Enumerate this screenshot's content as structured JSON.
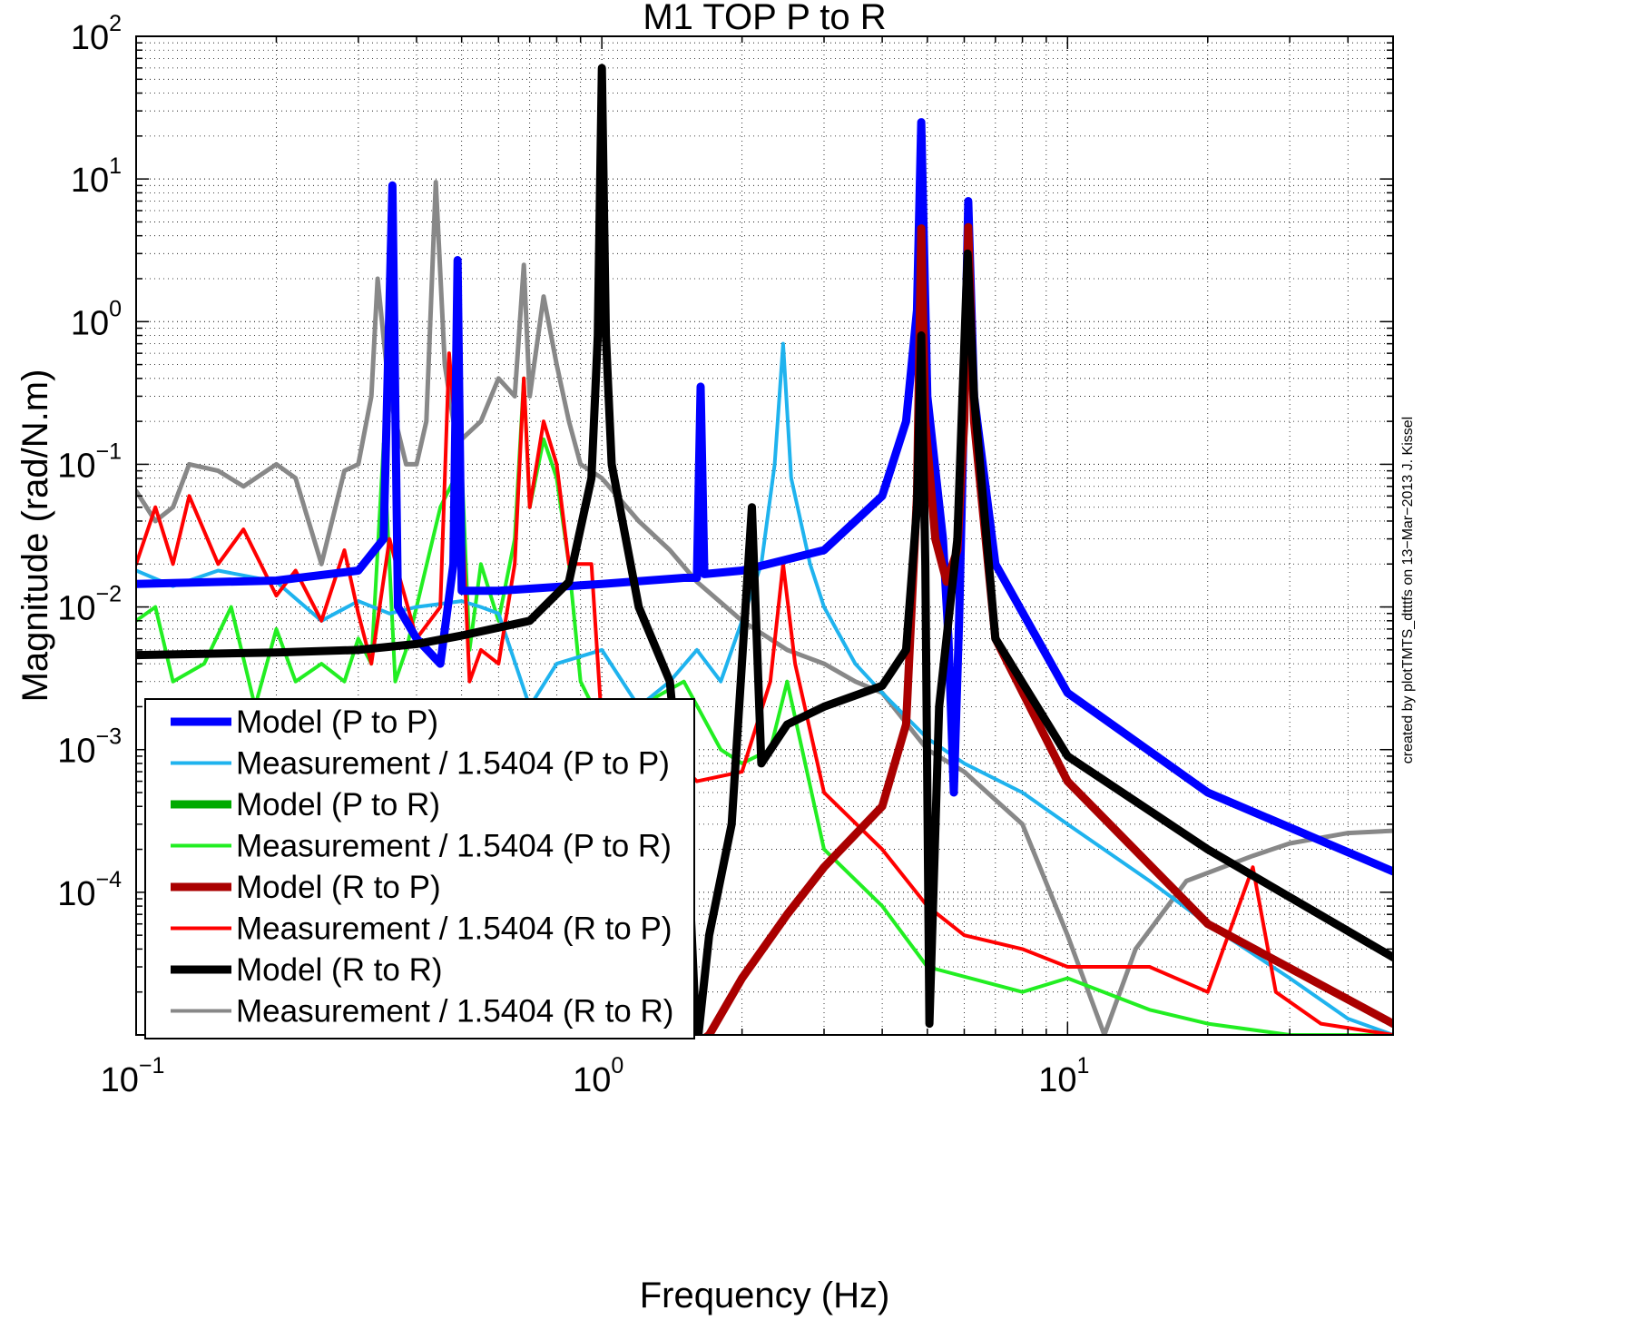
{
  "chart_data": {
    "type": "line",
    "title": "M1 TOP P to R",
    "xlabel": "Frequency (Hz)",
    "ylabel": "Magnitude (rad/N.m)",
    "x_scale": "log",
    "y_scale": "log",
    "xlim": [
      0.1,
      50
    ],
    "ylim": [
      1e-05,
      100
    ],
    "x_ticks": [
      {
        "value": 0.1,
        "base": "10",
        "exp": "−1"
      },
      {
        "value": 1,
        "base": "10",
        "exp": "0"
      },
      {
        "value": 10,
        "base": "10",
        "exp": "1"
      }
    ],
    "y_ticks": [
      {
        "value": 100,
        "base": "10",
        "exp": "2"
      },
      {
        "value": 10,
        "base": "10",
        "exp": "1"
      },
      {
        "value": 1,
        "base": "10",
        "exp": "0"
      },
      {
        "value": 0.1,
        "base": "10",
        "exp": "−1"
      },
      {
        "value": 0.01,
        "base": "10",
        "exp": "−2"
      },
      {
        "value": 0.001,
        "base": "10",
        "exp": "−3"
      },
      {
        "value": 0.0001,
        "base": "10",
        "exp": "−4"
      }
    ],
    "grid": true,
    "legend_position": "bottom-left",
    "credit": "created by plotTMTS_dtttfs on 13−Mar−2013 J. Kissel",
    "series": [
      {
        "name": "Model (P to P)",
        "color": "#0000ff",
        "width": 9,
        "kind": "model",
        "points": [
          [
            0.1,
            0.0145
          ],
          [
            0.2,
            0.0153
          ],
          [
            0.3,
            0.018
          ],
          [
            0.34,
            0.03
          ],
          [
            0.355,
            9
          ],
          [
            0.365,
            0.01
          ],
          [
            0.4,
            0.006
          ],
          [
            0.45,
            0.004
          ],
          [
            0.48,
            0.02
          ],
          [
            0.49,
            2.7
          ],
          [
            0.5,
            0.013
          ],
          [
            0.6,
            0.013
          ],
          [
            1,
            0.0145
          ],
          [
            1.5,
            0.016
          ],
          [
            1.6,
            0.016
          ],
          [
            1.63,
            0.35
          ],
          [
            1.66,
            0.017
          ],
          [
            2,
            0.018
          ],
          [
            3,
            0.025
          ],
          [
            4,
            0.06
          ],
          [
            4.5,
            0.2
          ],
          [
            4.75,
            1.2
          ],
          [
            4.85,
            25
          ],
          [
            5,
            0.3
          ],
          [
            5.4,
            0.03
          ],
          [
            5.55,
            0.006
          ],
          [
            5.7,
            0.0005
          ],
          [
            5.85,
            0.008
          ],
          [
            6,
            0.3
          ],
          [
            6.12,
            7
          ],
          [
            6.3,
            0.3
          ],
          [
            7,
            0.02
          ],
          [
            10,
            0.0025
          ],
          [
            20,
            0.0005
          ],
          [
            50,
            0.00014
          ]
        ]
      },
      {
        "name": "Measurement / 1.5404 (P to P)",
        "color": "#1fb3ee",
        "width": 4,
        "kind": "measurement",
        "points": [
          [
            0.1,
            0.018
          ],
          [
            0.12,
            0.014
          ],
          [
            0.15,
            0.018
          ],
          [
            0.2,
            0.015
          ],
          [
            0.25,
            0.008
          ],
          [
            0.3,
            0.011
          ],
          [
            0.35,
            0.009
          ],
          [
            0.4,
            0.01
          ],
          [
            0.5,
            0.011
          ],
          [
            0.55,
            0.01
          ],
          [
            0.6,
            0.009
          ],
          [
            0.7,
            0.002
          ],
          [
            0.8,
            0.004
          ],
          [
            1,
            0.005
          ],
          [
            1.2,
            0.002
          ],
          [
            1.4,
            0.003
          ],
          [
            1.6,
            0.005
          ],
          [
            1.8,
            0.003
          ],
          [
            2,
            0.008
          ],
          [
            2.2,
            0.02
          ],
          [
            2.35,
            0.1
          ],
          [
            2.45,
            0.7
          ],
          [
            2.55,
            0.08
          ],
          [
            2.8,
            0.02
          ],
          [
            3,
            0.01
          ],
          [
            3.5,
            0.004
          ],
          [
            4,
            0.0025
          ],
          [
            5,
            0.0012
          ],
          [
            6,
            0.0008
          ],
          [
            8,
            0.0005
          ],
          [
            10,
            0.0003
          ],
          [
            15,
            0.00012
          ],
          [
            20,
            6e-05
          ],
          [
            30,
            2.5e-05
          ],
          [
            40,
            1.3e-05
          ],
          [
            50,
            1e-05
          ]
        ]
      },
      {
        "name": "Model (P to R)",
        "color": "#00aa00",
        "width": 9,
        "kind": "model",
        "points": []
      },
      {
        "name": "Measurement / 1.5404 (P to R)",
        "color": "#22ee22",
        "width": 4,
        "kind": "measurement",
        "points": [
          [
            0.1,
            0.008
          ],
          [
            0.11,
            0.01
          ],
          [
            0.12,
            0.003
          ],
          [
            0.14,
            0.004
          ],
          [
            0.16,
            0.01
          ],
          [
            0.18,
            0.002
          ],
          [
            0.2,
            0.007
          ],
          [
            0.22,
            0.003
          ],
          [
            0.25,
            0.004
          ],
          [
            0.28,
            0.003
          ],
          [
            0.3,
            0.006
          ],
          [
            0.32,
            0.004
          ],
          [
            0.34,
            0.14
          ],
          [
            0.36,
            0.003
          ],
          [
            0.38,
            0.005
          ],
          [
            0.4,
            0.01
          ],
          [
            0.45,
            0.05
          ],
          [
            0.5,
            0.1
          ],
          [
            0.52,
            0.005
          ],
          [
            0.55,
            0.02
          ],
          [
            0.6,
            0.008
          ],
          [
            0.65,
            0.03
          ],
          [
            0.68,
            0.4
          ],
          [
            0.7,
            0.05
          ],
          [
            0.75,
            0.15
          ],
          [
            0.8,
            0.08
          ],
          [
            0.85,
            0.02
          ],
          [
            0.9,
            0.003
          ],
          [
            1,
            0.0015
          ],
          [
            1.2,
            0.002
          ],
          [
            1.5,
            0.003
          ],
          [
            1.8,
            0.001
          ],
          [
            2,
            0.0008
          ],
          [
            2.3,
            0.001
          ],
          [
            2.5,
            0.003
          ],
          [
            3,
            0.0002
          ],
          [
            4,
            8e-05
          ],
          [
            5,
            3e-05
          ],
          [
            8,
            2e-05
          ],
          [
            10,
            2.5e-05
          ],
          [
            15,
            1.5e-05
          ],
          [
            20,
            1.2e-05
          ],
          [
            30,
            1e-05
          ],
          [
            50,
            1e-05
          ]
        ]
      },
      {
        "name": "Model (R to P)",
        "color": "#aa0000",
        "width": 9,
        "kind": "model",
        "points": [
          [
            1.55,
            8e-06
          ],
          [
            1.7,
            1e-05
          ],
          [
            2,
            2.5e-05
          ],
          [
            2.5,
            7e-05
          ],
          [
            3,
            0.00015
          ],
          [
            4,
            0.0004
          ],
          [
            4.5,
            0.0015
          ],
          [
            4.75,
            0.06
          ],
          [
            4.85,
            4.5
          ],
          [
            4.95,
            0.2
          ],
          [
            5.2,
            0.03
          ],
          [
            5.5,
            0.015
          ],
          [
            5.8,
            0.025
          ],
          [
            6,
            0.2
          ],
          [
            6.12,
            4.6
          ],
          [
            6.3,
            0.2
          ],
          [
            7,
            0.006
          ],
          [
            10,
            0.0006
          ],
          [
            20,
            6e-05
          ],
          [
            50,
            1.2e-05
          ]
        ]
      },
      {
        "name": "Measurement / 1.5404 (R to P)",
        "color": "#ff0000",
        "width": 4,
        "kind": "measurement",
        "points": [
          [
            0.1,
            0.02
          ],
          [
            0.11,
            0.05
          ],
          [
            0.12,
            0.02
          ],
          [
            0.13,
            0.06
          ],
          [
            0.15,
            0.02
          ],
          [
            0.17,
            0.035
          ],
          [
            0.2,
            0.012
          ],
          [
            0.22,
            0.018
          ],
          [
            0.25,
            0.008
          ],
          [
            0.28,
            0.025
          ],
          [
            0.3,
            0.009
          ],
          [
            0.32,
            0.004
          ],
          [
            0.35,
            0.03
          ],
          [
            0.37,
            0.015
          ],
          [
            0.4,
            0.006
          ],
          [
            0.45,
            0.01
          ],
          [
            0.47,
            0.6
          ],
          [
            0.5,
            0.05
          ],
          [
            0.52,
            0.003
          ],
          [
            0.55,
            0.005
          ],
          [
            0.6,
            0.004
          ],
          [
            0.65,
            0.02
          ],
          [
            0.68,
            0.4
          ],
          [
            0.7,
            0.05
          ],
          [
            0.75,
            0.2
          ],
          [
            0.8,
            0.1
          ],
          [
            0.85,
            0.02
          ],
          [
            0.95,
            0.02
          ],
          [
            1,
            0.0015
          ],
          [
            1.1,
            0.002
          ],
          [
            1.3,
            0.0012
          ],
          [
            1.6,
            0.0006
          ],
          [
            2,
            0.0007
          ],
          [
            2.3,
            0.003
          ],
          [
            2.45,
            0.02
          ],
          [
            2.6,
            0.004
          ],
          [
            3,
            0.0005
          ],
          [
            4,
            0.0002
          ],
          [
            5,
            8e-05
          ],
          [
            6,
            5e-05
          ],
          [
            8,
            4e-05
          ],
          [
            10,
            3e-05
          ],
          [
            15,
            3e-05
          ],
          [
            20,
            2e-05
          ],
          [
            25,
            0.00015
          ],
          [
            28,
            2e-05
          ],
          [
            35,
            1.2e-05
          ],
          [
            50,
            1e-05
          ]
        ]
      },
      {
        "name": "Model (R to R)",
        "color": "#000000",
        "width": 9,
        "kind": "model",
        "points": [
          [
            0.1,
            0.0046
          ],
          [
            0.2,
            0.0048
          ],
          [
            0.3,
            0.005
          ],
          [
            0.4,
            0.0055
          ],
          [
            0.5,
            0.0063
          ],
          [
            0.7,
            0.008
          ],
          [
            0.85,
            0.015
          ],
          [
            0.95,
            0.08
          ],
          [
            0.98,
            0.8
          ],
          [
            1,
            60
          ],
          [
            1.02,
            0.8
          ],
          [
            1.05,
            0.1
          ],
          [
            1.2,
            0.01
          ],
          [
            1.4,
            0.003
          ],
          [
            1.55,
            8e-05
          ],
          [
            1.6,
            8e-06
          ],
          [
            1.7,
            5e-05
          ],
          [
            1.9,
            0.0003
          ],
          [
            2.1,
            0.05
          ],
          [
            2.2,
            0.0008
          ],
          [
            2.5,
            0.0015
          ],
          [
            3,
            0.002
          ],
          [
            4,
            0.0028
          ],
          [
            4.5,
            0.005
          ],
          [
            4.75,
            0.05
          ],
          [
            4.85,
            0.8
          ],
          [
            4.95,
            0.02
          ],
          [
            5.05,
            1.2e-05
          ],
          [
            5.3,
            0.002
          ],
          [
            5.8,
            0.03
          ],
          [
            6.1,
            3
          ],
          [
            6.3,
            0.3
          ],
          [
            7,
            0.006
          ],
          [
            10,
            0.0009
          ],
          [
            20,
            0.0002
          ],
          [
            50,
            3.5e-05
          ]
        ]
      },
      {
        "name": "Measurement / 1.5404 (R to R)",
        "color": "#888888",
        "width": 5,
        "kind": "measurement",
        "points": [
          [
            0.1,
            0.065
          ],
          [
            0.11,
            0.04
          ],
          [
            0.12,
            0.05
          ],
          [
            0.13,
            0.1
          ],
          [
            0.15,
            0.09
          ],
          [
            0.17,
            0.07
          ],
          [
            0.2,
            0.1
          ],
          [
            0.22,
            0.08
          ],
          [
            0.25,
            0.02
          ],
          [
            0.28,
            0.09
          ],
          [
            0.3,
            0.1
          ],
          [
            0.32,
            0.3
          ],
          [
            0.33,
            2
          ],
          [
            0.35,
            0.3
          ],
          [
            0.38,
            0.1
          ],
          [
            0.4,
            0.1
          ],
          [
            0.42,
            0.2
          ],
          [
            0.44,
            9.5
          ],
          [
            0.46,
            0.5
          ],
          [
            0.48,
            0.2
          ],
          [
            0.5,
            0.15
          ],
          [
            0.55,
            0.2
          ],
          [
            0.6,
            0.4
          ],
          [
            0.65,
            0.3
          ],
          [
            0.68,
            2.5
          ],
          [
            0.7,
            0.3
          ],
          [
            0.75,
            1.5
          ],
          [
            0.8,
            0.5
          ],
          [
            0.85,
            0.2
          ],
          [
            0.9,
            0.1
          ],
          [
            1,
            0.08
          ],
          [
            1.2,
            0.04
          ],
          [
            1.4,
            0.025
          ],
          [
            1.6,
            0.015
          ],
          [
            2,
            0.008
          ],
          [
            2.5,
            0.005
          ],
          [
            3,
            0.004
          ],
          [
            3.5,
            0.003
          ],
          [
            4,
            0.0025
          ],
          [
            5,
            0.001
          ],
          [
            6,
            0.0007
          ],
          [
            8,
            0.0003
          ],
          [
            10,
            5e-05
          ],
          [
            12,
            1e-05
          ],
          [
            14,
            4e-05
          ],
          [
            18,
            0.00012
          ],
          [
            25,
            0.00018
          ],
          [
            30,
            0.00022
          ],
          [
            40,
            0.00026
          ],
          [
            50,
            0.00027
          ]
        ]
      }
    ]
  }
}
